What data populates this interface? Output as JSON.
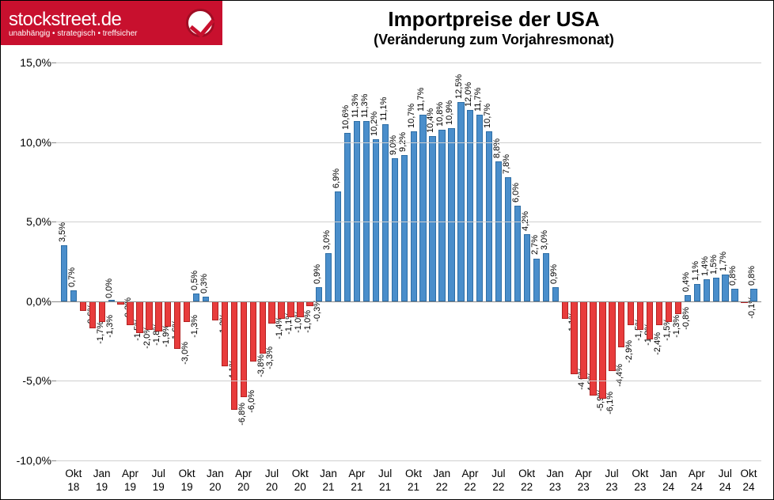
{
  "logo": {
    "main": "stockstreet.de",
    "sub": "unabhängig • strategisch • treffsicher"
  },
  "title": "Importpreise der USA",
  "subtitle": "(Veränderung zum Vorjahresmonat)",
  "chart": {
    "type": "bar",
    "ymin": -10.0,
    "ymax": 15.0,
    "ytick_step": 5.0,
    "ytick_format_suffix": ",0%",
    "positive_color": "#4a8ecb",
    "positive_border": "#2e6ea5",
    "negative_color": "#e83c3c",
    "negative_border": "#b22222",
    "grid_color": "#cfcfcf",
    "background": "#ffffff",
    "label_fontsize": 11,
    "axis_fontsize": 14,
    "values": [
      3.5,
      0.7,
      -0.6,
      -1.7,
      -1.3,
      0.0,
      -0.2,
      -1.5,
      -2.0,
      -1.8,
      -1.9,
      -1.6,
      -3.0,
      -1.3,
      0.5,
      0.3,
      -1.2,
      -4.1,
      -6.8,
      -6.0,
      -3.8,
      -3.3,
      -1.4,
      -1.1,
      -1.0,
      -1.0,
      -0.3,
      0.9,
      3.0,
      6.9,
      10.6,
      11.3,
      11.3,
      10.2,
      11.1,
      9.0,
      9.2,
      10.7,
      11.7,
      10.4,
      10.8,
      10.9,
      12.5,
      12.0,
      11.7,
      10.7,
      8.8,
      7.8,
      6.0,
      4.2,
      2.7,
      3.0,
      0.9,
      -1.1,
      -4.6,
      -4.9,
      -5.9,
      -6.1,
      -4.4,
      -2.9,
      -1.5,
      -1.8,
      -2.4,
      -1.5,
      -1.3,
      -0.8,
      0.4,
      1.1,
      1.4,
      1.5,
      1.7,
      0.8,
      -0.1,
      0.8
    ],
    "xlabels": [
      {
        "m": "Okt",
        "y": "18"
      },
      {
        "m": "Jan",
        "y": "19"
      },
      {
        "m": "Apr",
        "y": "19"
      },
      {
        "m": "Jul",
        "y": "19"
      },
      {
        "m": "Okt",
        "y": "19"
      },
      {
        "m": "Jan",
        "y": "20"
      },
      {
        "m": "Apr",
        "y": "20"
      },
      {
        "m": "Jul",
        "y": "20"
      },
      {
        "m": "Okt",
        "y": "20"
      },
      {
        "m": "Jan",
        "y": "21"
      },
      {
        "m": "Apr",
        "y": "21"
      },
      {
        "m": "Jul",
        "y": "21"
      },
      {
        "m": "Okt",
        "y": "21"
      },
      {
        "m": "Jan",
        "y": "22"
      },
      {
        "m": "Apr",
        "y": "22"
      },
      {
        "m": "Jul",
        "y": "22"
      },
      {
        "m": "Okt",
        "y": "22"
      },
      {
        "m": "Jan",
        "y": "23"
      },
      {
        "m": "Apr",
        "y": "23"
      },
      {
        "m": "Jul",
        "y": "23"
      },
      {
        "m": "Okt",
        "y": "23"
      },
      {
        "m": "Jan",
        "y": "24"
      },
      {
        "m": "Apr",
        "y": "24"
      },
      {
        "m": "Jul",
        "y": "24"
      },
      {
        "m": "Okt",
        "y": "24"
      }
    ],
    "xlabel_every": 3
  }
}
